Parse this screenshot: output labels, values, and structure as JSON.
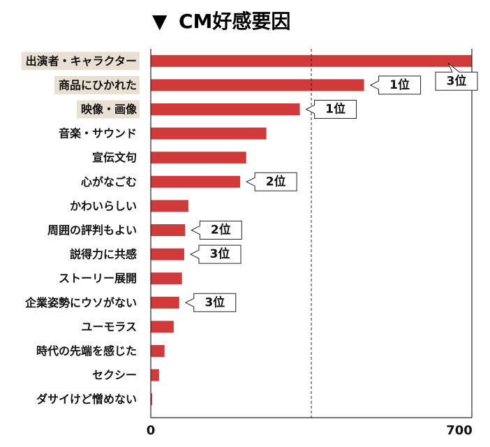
{
  "chart_data": {
    "type": "bar",
    "orientation": "horizontal",
    "title_marker": "▼",
    "title": "CM好感要因",
    "categories": [
      "出演者・キャラクター",
      "商品にひかれた",
      "映像・画像",
      "音楽・サウンド",
      "宣伝文句",
      "心がなごむ",
      "かわいらしい",
      "周囲の評判もよい",
      "説得力に共感",
      "ストーリー展開",
      "企業姿勢にウソがない",
      "ユーモラス",
      "時代の先端を感じた",
      "セクシー",
      "ダサイけど憎めない"
    ],
    "values": [
      700,
      465,
      325,
      252,
      208,
      195,
      82,
      75,
      73,
      68,
      62,
      50,
      30,
      18,
      3
    ],
    "highlighted_categories": [
      "出演者・キャラクター",
      "商品にひかれた",
      "映像・画像"
    ],
    "rank_annotations": [
      {
        "category": "出演者・キャラクター",
        "label": "3位"
      },
      {
        "category": "商品にひかれた",
        "label": "1位"
      },
      {
        "category": "映像・画像",
        "label": "1位"
      },
      {
        "category": "心がなごむ",
        "label": "2位"
      },
      {
        "category": "周囲の評判もよい",
        "label": "2位"
      },
      {
        "category": "説得力に共感",
        "label": "3位"
      },
      {
        "category": "企業姿勢にウソがない",
        "label": "3位"
      }
    ],
    "xlim": [
      0,
      700
    ],
    "x_ticks": [
      "0",
      "700"
    ],
    "reference_line_value": 350,
    "colors": {
      "bar": "#d03a3a",
      "highlight": "#e8e0d2",
      "axis": "#222222",
      "text": "#111111"
    }
  }
}
